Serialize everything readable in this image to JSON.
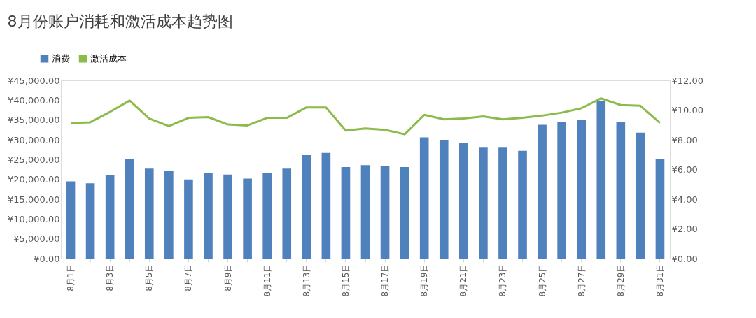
{
  "chart_data": {
    "type": "bar",
    "title": "8月份账户消耗和激活成本趋势图",
    "categories": [
      "8月1日",
      null,
      "8月3日",
      null,
      "8月5日",
      null,
      "8月7日",
      null,
      "8月9日",
      null,
      "8月11日",
      null,
      "8月13日",
      null,
      "8月15日",
      null,
      "8月17日",
      null,
      "8月19日",
      null,
      "8月21日",
      null,
      "8月23日",
      null,
      "8月25日",
      null,
      "8月27日",
      null,
      "8月29日",
      null,
      "8月31日"
    ],
    "series": [
      {
        "name": "消费",
        "color": "#4f81bd",
        "values": [
          19500,
          19000,
          21000,
          25100,
          22700,
          22100,
          20000,
          21700,
          21200,
          20200,
          21600,
          22700,
          26100,
          26700,
          23100,
          23600,
          23400,
          23100,
          30600,
          29900,
          29300,
          28000,
          28000,
          27200,
          33800,
          34600,
          35000,
          39900,
          34400,
          31800,
          25100
        ]
      },
      {
        "name": "激活成本",
        "type": "line",
        "axis": "y2",
        "color": "#8cbb4c",
        "values": [
          9.13,
          9.18,
          9.88,
          10.64,
          9.43,
          8.92,
          9.48,
          9.53,
          9.03,
          8.97,
          9.48,
          9.48,
          10.18,
          10.18,
          8.62,
          8.77,
          8.67,
          8.37,
          9.68,
          9.38,
          9.43,
          9.58,
          9.38,
          9.48,
          9.63,
          9.83,
          10.13,
          10.79,
          10.34,
          10.29,
          9.13
        ]
      }
    ],
    "ylim": [
      0,
      45000
    ],
    "yticks": [
      {
        "value": 0,
        "label": "¥0.00"
      },
      {
        "value": 5000,
        "label": "¥5,000.00"
      },
      {
        "value": 10000,
        "label": "¥10,000.00"
      },
      {
        "value": 15000,
        "label": "¥15,000.00"
      },
      {
        "value": 20000,
        "label": "¥20,000.00"
      },
      {
        "value": 25000,
        "label": "¥25,000.00"
      },
      {
        "value": 30000,
        "label": "¥30,000.00"
      },
      {
        "value": 35000,
        "label": "¥35,000.00"
      },
      {
        "value": 40000,
        "label": "¥40,000.00"
      },
      {
        "value": 45000,
        "label": "¥45,000.00"
      }
    ],
    "y2lim": [
      0,
      12
    ],
    "y2ticks": [
      {
        "value": 0,
        "label": "¥0.00"
      },
      {
        "value": 2,
        "label": "¥2.00"
      },
      {
        "value": 4,
        "label": "¥4.00"
      },
      {
        "value": 6,
        "label": "¥6.00"
      },
      {
        "value": 8,
        "label": "¥8.00"
      },
      {
        "value": 10,
        "label": "¥10.00"
      },
      {
        "value": 12,
        "label": "¥12.00"
      }
    ],
    "grid": false,
    "legend": "top left",
    "line_style": "solid",
    "marker": "none"
  }
}
